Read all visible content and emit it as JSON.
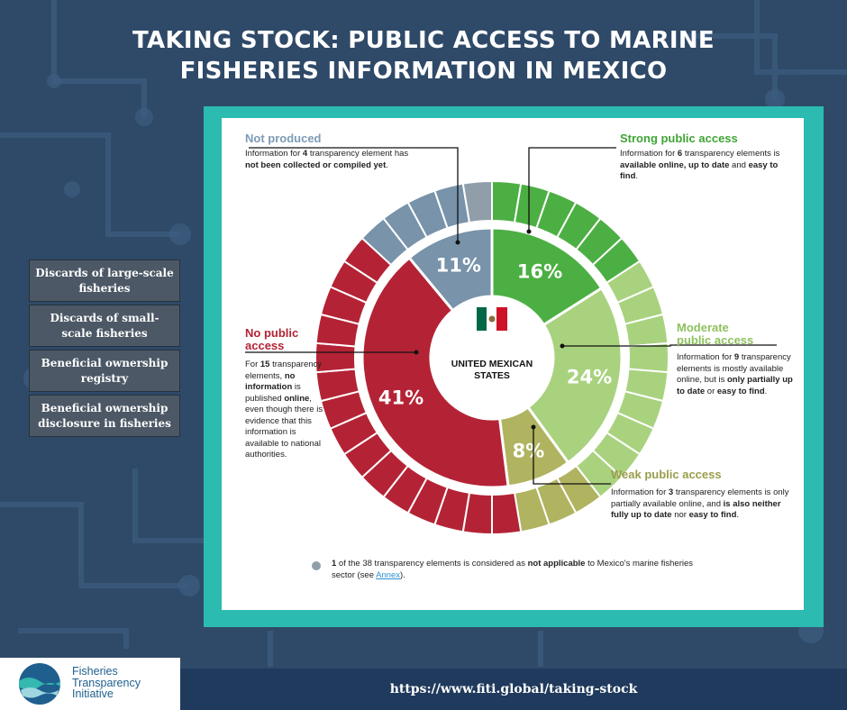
{
  "header": {
    "title_line1": "TAKING STOCK: PUBLIC ACCESS TO MARINE",
    "title_line2": "FISHERIES INFORMATION IN MEXICO"
  },
  "sidebar": {
    "items": [
      "Discards of large-scale fisheries",
      "Discards of small-scale fisheries",
      "Beneficial ownership registry",
      "Beneficial ownership disclosure in fisheries"
    ]
  },
  "center": {
    "line1": "UNITED MEXICAN",
    "line2": "STATES"
  },
  "categories": {
    "not_produced": {
      "title": "Not produced",
      "desc": [
        "Information for ",
        "4",
        " transparency element has ",
        "not been collected or compiled yet",
        "."
      ]
    },
    "strong": {
      "title": "Strong public access",
      "desc": [
        "Information for ",
        "6",
        " transparency elements is ",
        "available online, up to date",
        " and ",
        "easy to find",
        "."
      ]
    },
    "moderate": {
      "title_line1": "Moderate",
      "title_line2": "public access",
      "desc": [
        "Information for ",
        "9",
        " transparency elements is mostly available online, but is ",
        "only partially up to date",
        " or ",
        "easy to find",
        "."
      ]
    },
    "weak": {
      "title": "Weak public access",
      "desc": [
        "Information for ",
        "3",
        " transparency elements is only partially available online, and ",
        "is also neither fully up to date",
        " nor ",
        "easy to find",
        "."
      ]
    },
    "none": {
      "title_line1": "No public",
      "title_line2": "access",
      "desc": [
        "For ",
        "15",
        " transparency elements, ",
        "no information",
        " is published ",
        "online",
        ", even though there is evidence that this information is available to national authorities."
      ]
    }
  },
  "note": {
    "parts": [
      "1",
      " of the 38 transparency elements is considered as ",
      "not applicable",
      " to Mexico's marine fisheries sector (see ",
      "Annex",
      ")."
    ]
  },
  "footer": {
    "url": "https://www.fiti.global/taking-stock",
    "logo_line1": "Fisheries",
    "logo_line2": "Transparency",
    "logo_line3": "Initiative"
  },
  "colors": {
    "background": "#2f4a68",
    "frame": "#2bbbb1",
    "strong": "#4caf43",
    "moderate": "#a9d27f",
    "weak": "#b0b35f",
    "none": "#b42335",
    "not_produced": "#7893aa",
    "not_applicable": "#8f9ea8",
    "category_title": "#7d9ab5",
    "strong_title": "#3fa535",
    "moderate_title": "#8ec15f",
    "weak_title": "#9a9d4c",
    "none_title": "#b42335"
  },
  "chart_data": {
    "type": "pie",
    "variant": "donut-with-element-ring",
    "total_elements": 38,
    "slices": [
      {
        "name": "Strong public access",
        "label": "16%",
        "value": 16,
        "elements": 6,
        "color": "#4caf43"
      },
      {
        "name": "Moderate public access",
        "label": "24%",
        "value": 24,
        "elements": 9,
        "color": "#a9d27f"
      },
      {
        "name": "Weak public access",
        "label": "8%",
        "value": 8,
        "elements": 3,
        "color": "#b0b35f"
      },
      {
        "name": "No public access",
        "label": "41%",
        "value": 41,
        "elements": 15,
        "color": "#b42335"
      },
      {
        "name": "Not produced",
        "label": "11%",
        "value": 11,
        "elements": 4,
        "color": "#7893aa"
      }
    ],
    "not_applicable_elements": 1
  }
}
